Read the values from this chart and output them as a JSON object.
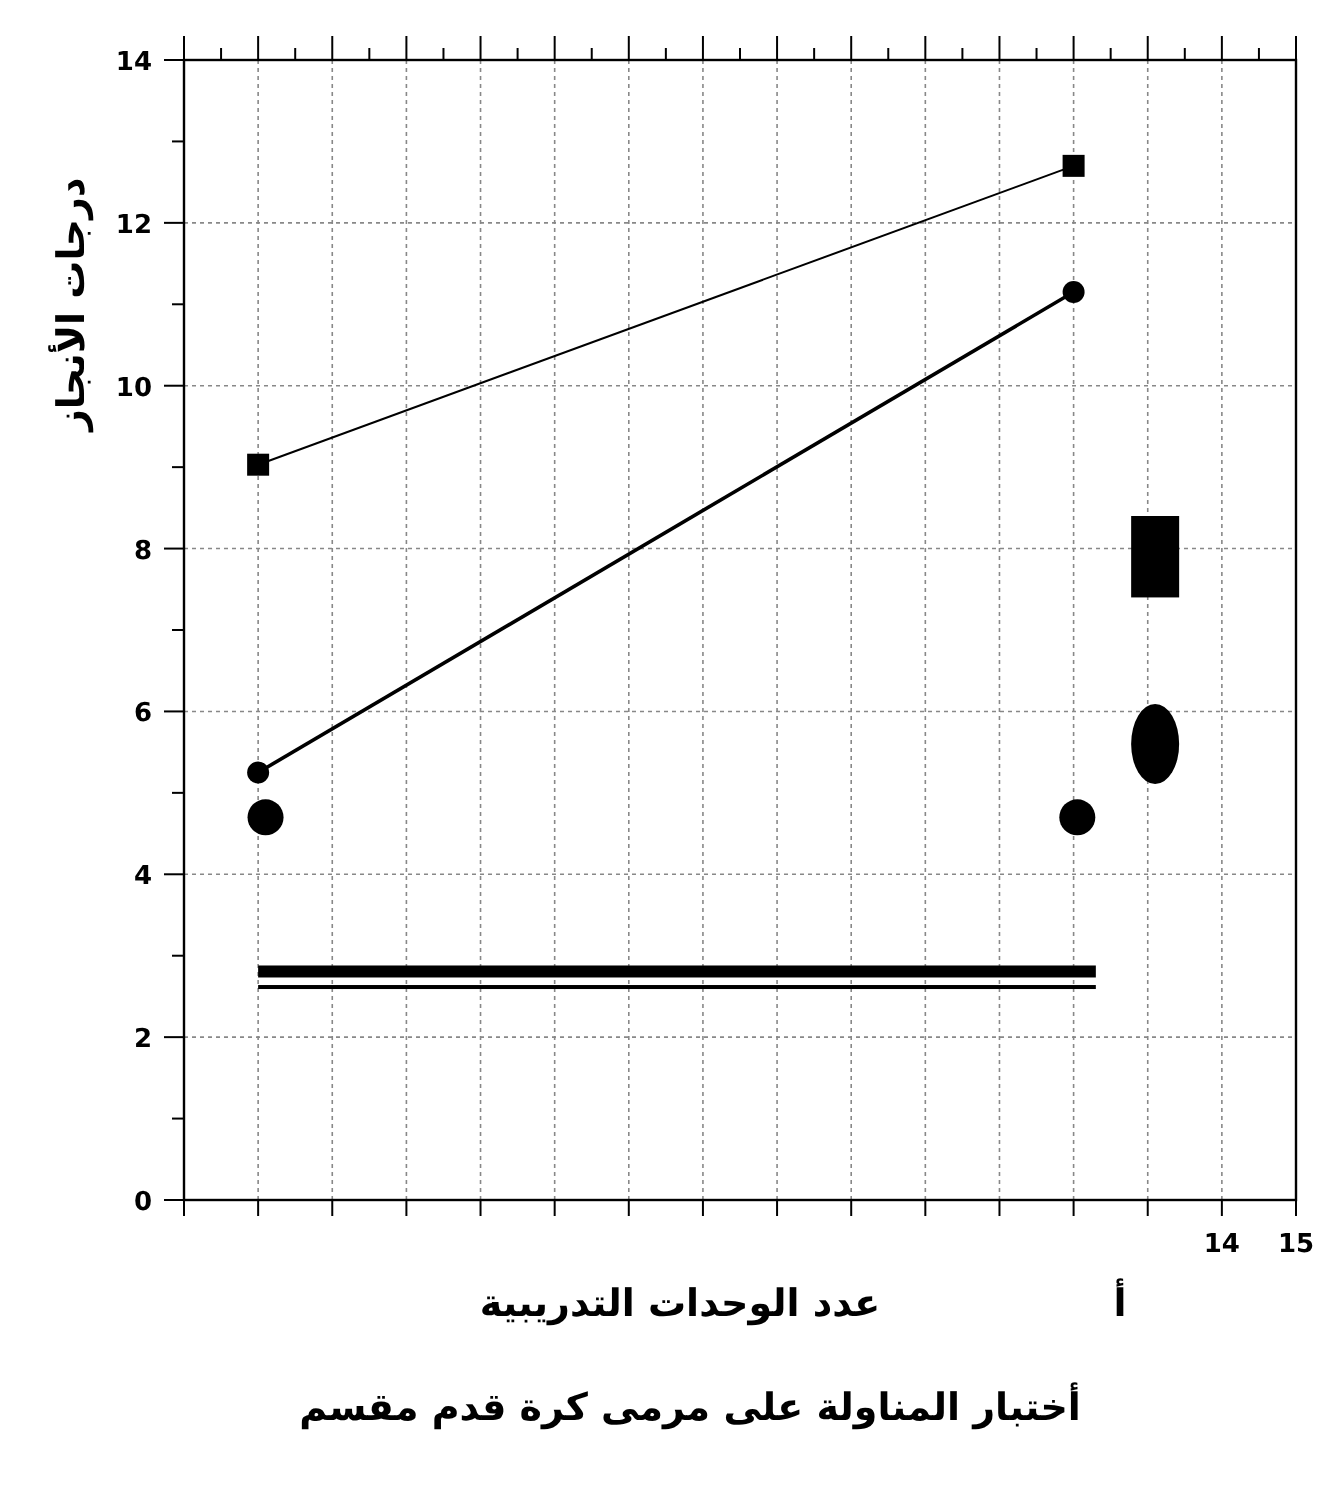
{
  "chart_data": {
    "type": "line",
    "title": "أختبار المناولة على مرمى كرة قدم مقسم",
    "xlabel": "عدد الوحدات التدريبية",
    "ylabel": "درجات الأنجاز",
    "annotations": [
      "أ"
    ],
    "x": [
      1,
      12
    ],
    "xlim": [
      0,
      15
    ],
    "xticks": [
      {
        "value": 0,
        "label": null
      },
      {
        "value": 1,
        "label": null
      },
      {
        "value": 2,
        "label": null
      },
      {
        "value": 3,
        "label": null
      },
      {
        "value": 4,
        "label": null
      },
      {
        "value": 5,
        "label": null
      },
      {
        "value": 6,
        "label": null
      },
      {
        "value": 7,
        "label": null
      },
      {
        "value": 8,
        "label": null
      },
      {
        "value": 9,
        "label": null
      },
      {
        "value": 10,
        "label": null
      },
      {
        "value": 11,
        "label": null
      },
      {
        "value": 12,
        "label": null
      },
      {
        "value": 13,
        "label": null
      },
      14,
      15
    ],
    "ylim": [
      0,
      14
    ],
    "yticks": [
      0,
      2,
      4,
      6,
      8,
      10,
      12,
      14
    ],
    "grid": true,
    "series": [
      {
        "color": "#000000",
        "marker": "square",
        "values": [
          9.03,
          12.7
        ]
      },
      {
        "color": "#000000",
        "marker": "circle",
        "values": [
          5.25,
          11.15
        ]
      },
      {
        "type": "scatter",
        "color": "#000000",
        "marker": "circle",
        "x": [
          1.1,
          12.05
        ],
        "values": [
          4.7,
          4.7
        ]
      }
    ]
  }
}
